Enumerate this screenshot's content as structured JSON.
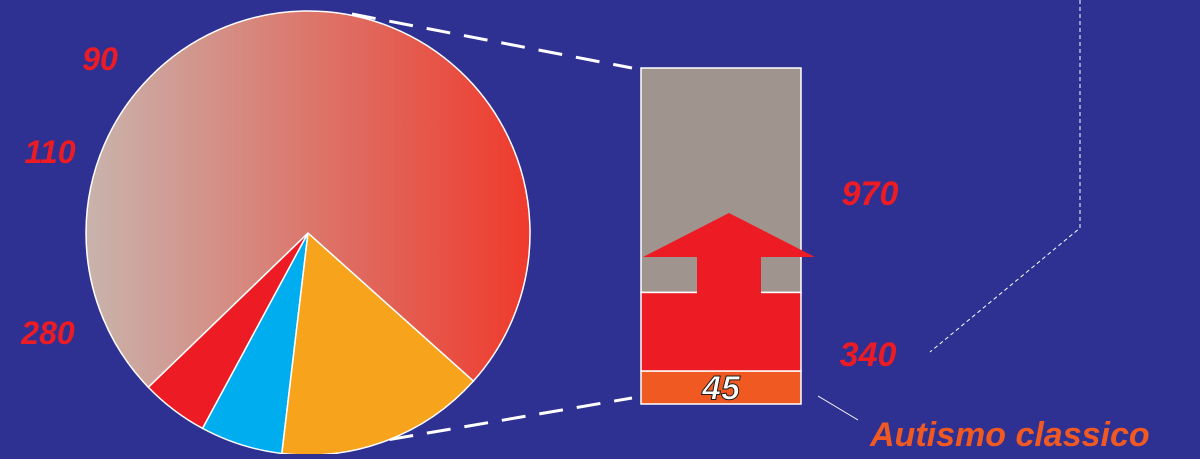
{
  "chart_data": [
    {
      "type": "pie",
      "title": "",
      "slices": [
        {
          "label": "90",
          "value": 90,
          "color": "#ed1c24"
        },
        {
          "label": "110",
          "value": 110,
          "color": "#00aeef"
        },
        {
          "label": "280",
          "value": 280,
          "color": "#f7a31c"
        },
        {
          "label": "",
          "value": 1355,
          "color": "gradient"
        }
      ],
      "gradient": {
        "from": "#c8b4ad",
        "to": "#ef3a2c"
      },
      "label_color": "#ed1c24"
    },
    {
      "type": "bar",
      "stacked": true,
      "segments": [
        {
          "label": "45",
          "value": 45,
          "color": "#f05a22"
        },
        {
          "label": "340",
          "value": 340,
          "color": "#ed1c24"
        },
        {
          "label": "970",
          "value": 970,
          "color": "#a0948f"
        }
      ],
      "arrow_color": "#ed1c24",
      "annotation": "Autismo classico"
    }
  ],
  "colors": {
    "background": "#2f3192",
    "label": "#ed1c24",
    "annotation": "#f05a22"
  }
}
